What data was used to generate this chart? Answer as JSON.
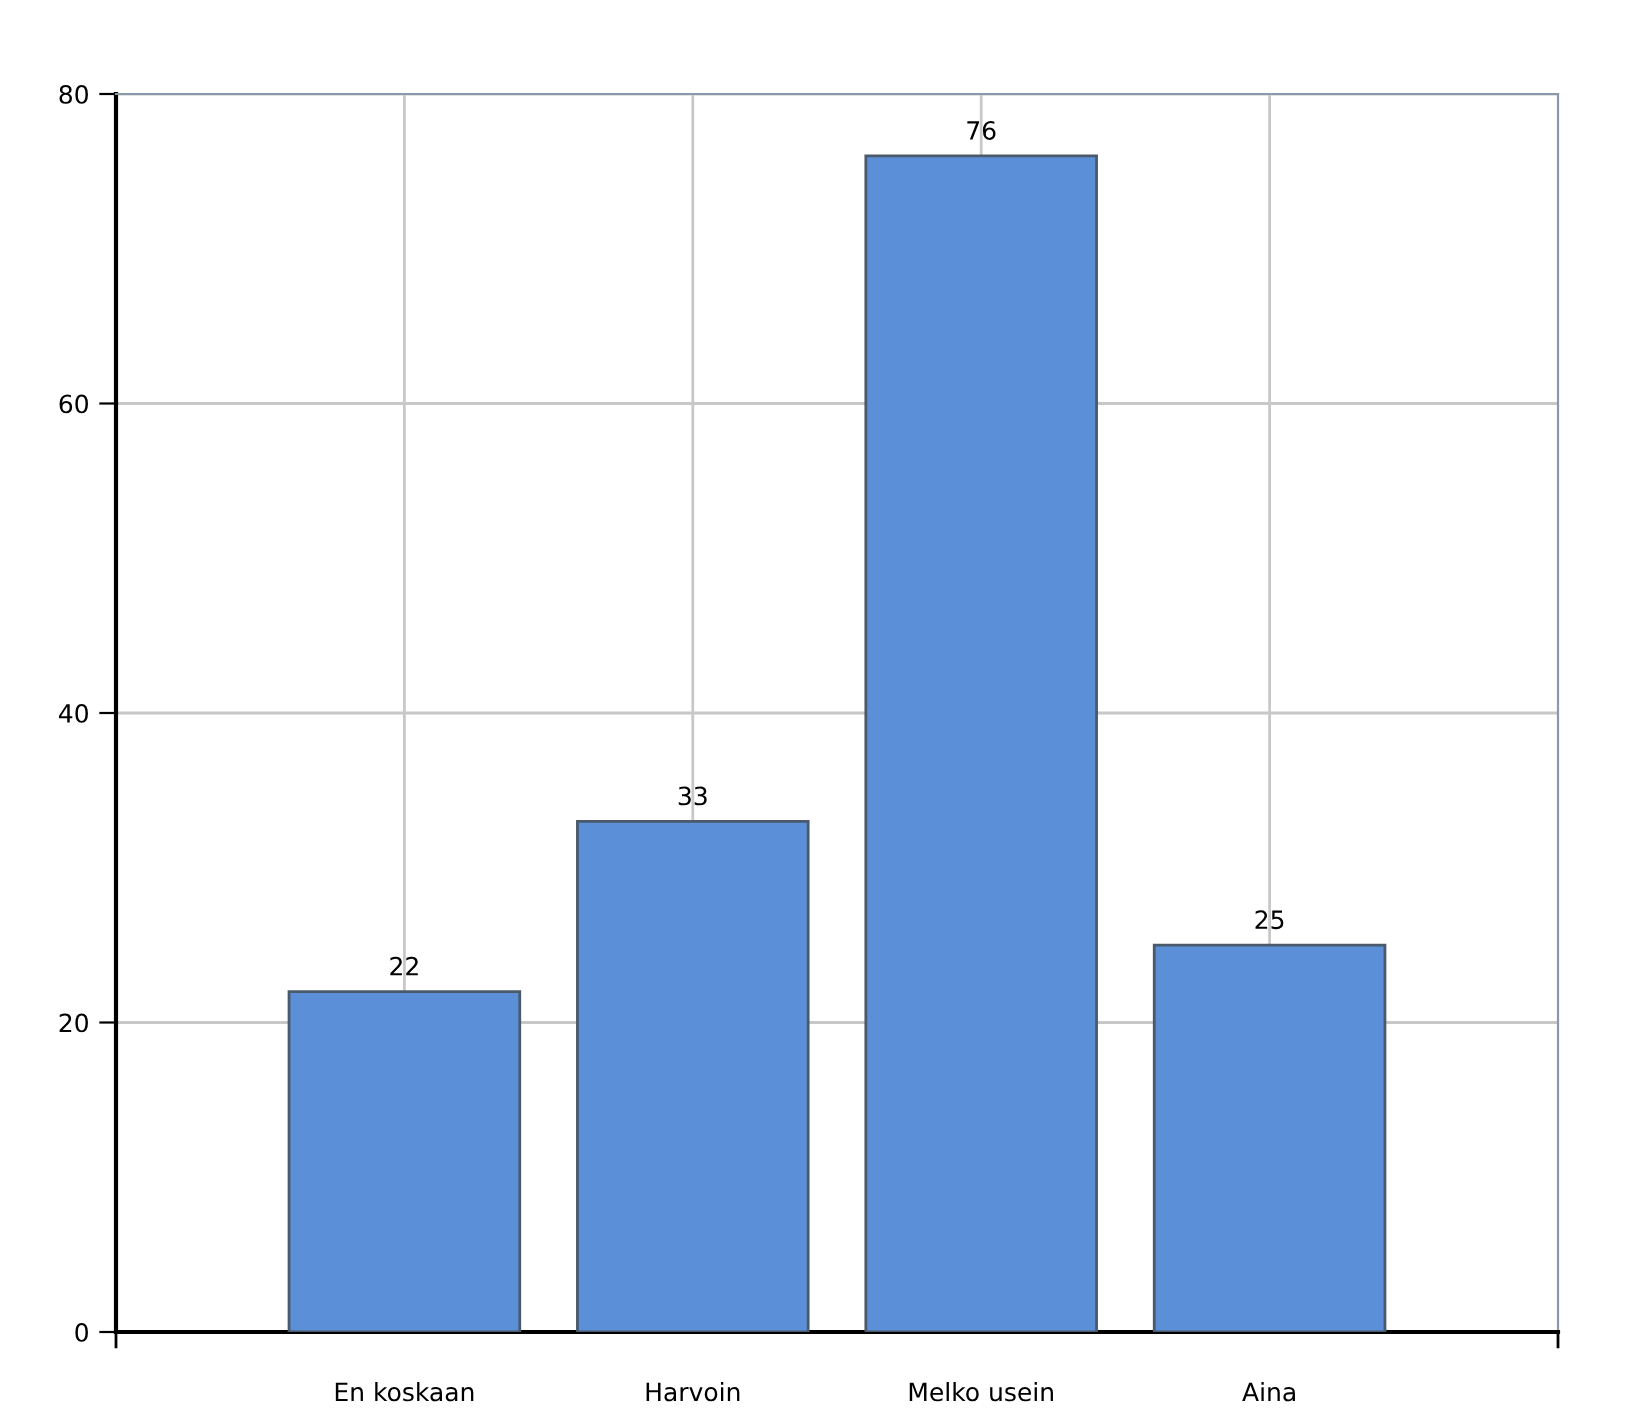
{
  "chart_data": {
    "type": "bar",
    "categories": [
      "En koskaan",
      "Harvoin",
      "Melko usein",
      "Aina"
    ],
    "values": [
      22,
      33,
      76,
      25
    ],
    "color": "#5b8fd8",
    "ylim": [
      0,
      80
    ],
    "yticks": [
      0,
      20,
      40,
      60,
      80
    ],
    "grid": true,
    "data_labels": true
  }
}
